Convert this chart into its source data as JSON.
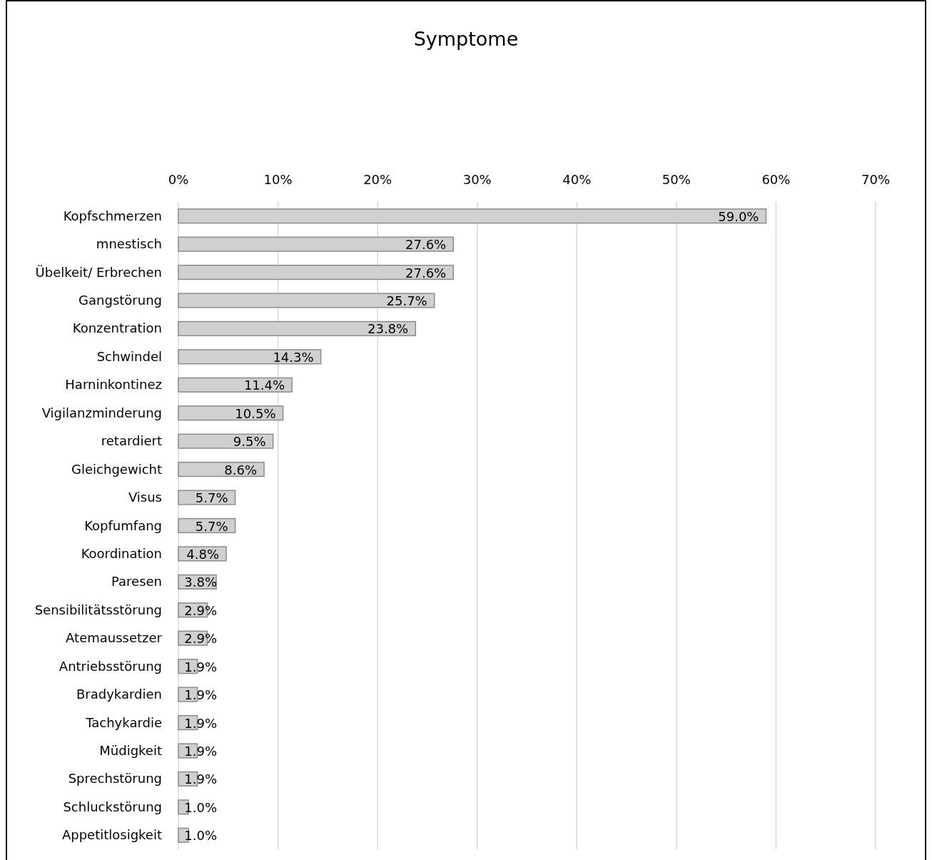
{
  "chart_data": {
    "type": "bar",
    "title": "Symptome",
    "orientation": "horizontal",
    "categories": [
      "Kopfschmerzen",
      "mnestisch",
      "Übelkeit/ Erbrechen",
      "Gangstörung",
      "Konzentration",
      "Schwindel",
      "Harninkontinez",
      "Vigilanzminderung",
      "retardiert",
      "Gleichgewicht",
      "Visus",
      "Kopfumfang",
      "Koordination",
      "Paresen",
      "Sensibilitätsstörung",
      "Atemaussetzer",
      "Antriebsstörung",
      "Bradykardien",
      "Tachykardie",
      "Müdigkeit",
      "Sprechstörung",
      "Schluckstörung",
      "Appetitlosigkeit"
    ],
    "values": [
      59.0,
      27.6,
      27.6,
      25.7,
      23.8,
      14.3,
      11.4,
      10.5,
      9.5,
      8.6,
      5.7,
      5.7,
      4.8,
      3.8,
      2.9,
      2.9,
      1.9,
      1.9,
      1.9,
      1.9,
      1.9,
      1.0,
      1.0
    ],
    "value_labels": [
      "59.0%",
      "27.6%",
      "27.6%",
      "25.7%",
      "23.8%",
      "14.3%",
      "11.4%",
      "10.5%",
      "9.5%",
      "8.6%",
      "5.7%",
      "5.7%",
      "4.8%",
      "3.8%",
      "2.9%",
      "2.9%",
      "1.9%",
      "1.9%",
      "1.9%",
      "1.9%",
      "1.9%",
      "1.0%",
      "1.0%"
    ],
    "color": "#d0d0d0",
    "xlim": [
      0,
      70
    ],
    "xticks": [
      {
        "value": 0,
        "label": "0%"
      },
      {
        "value": 10,
        "label": "10%"
      },
      {
        "value": 20,
        "label": "20%"
      },
      {
        "value": 30,
        "label": "30%"
      },
      {
        "value": 40,
        "label": "40%"
      },
      {
        "value": 50,
        "label": "50%"
      },
      {
        "value": 60,
        "label": "60%"
      },
      {
        "value": 70,
        "label": "70%"
      }
    ],
    "grid": "x"
  }
}
